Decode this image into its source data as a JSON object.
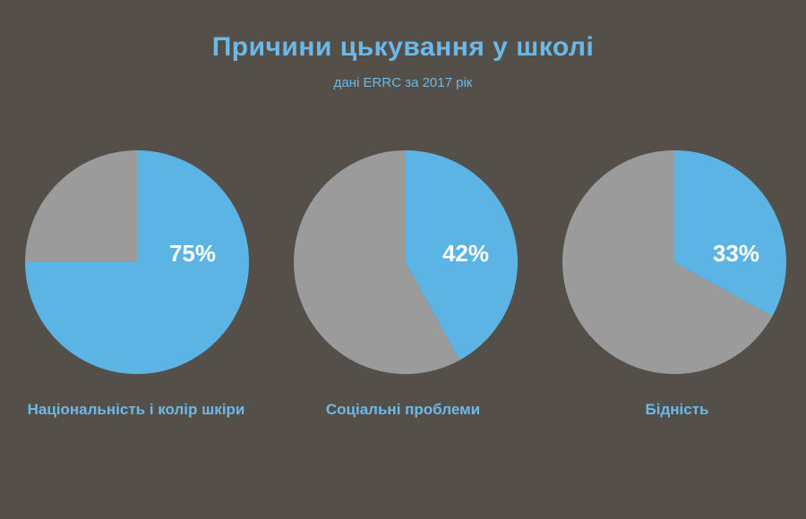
{
  "chart_data": {
    "type": "pie",
    "title": "Причини цькування у школі",
    "subtitle": "дані ERRC за 2017 рік",
    "unit": "%",
    "charts": [
      {
        "label": "Національність і колір шкіри",
        "value": 75,
        "value_label": "75%"
      },
      {
        "label": "Соціальні проблеми",
        "value": 42,
        "value_label": "42%"
      },
      {
        "label": "Бідність",
        "value": 33,
        "value_label": "33%"
      }
    ],
    "colors": {
      "background": "#545049",
      "value_slice": "#5cb4e4",
      "rest_slice": "#9b9b9b",
      "title_text": "#6cb8e8",
      "value_text": "#ffffff"
    }
  }
}
